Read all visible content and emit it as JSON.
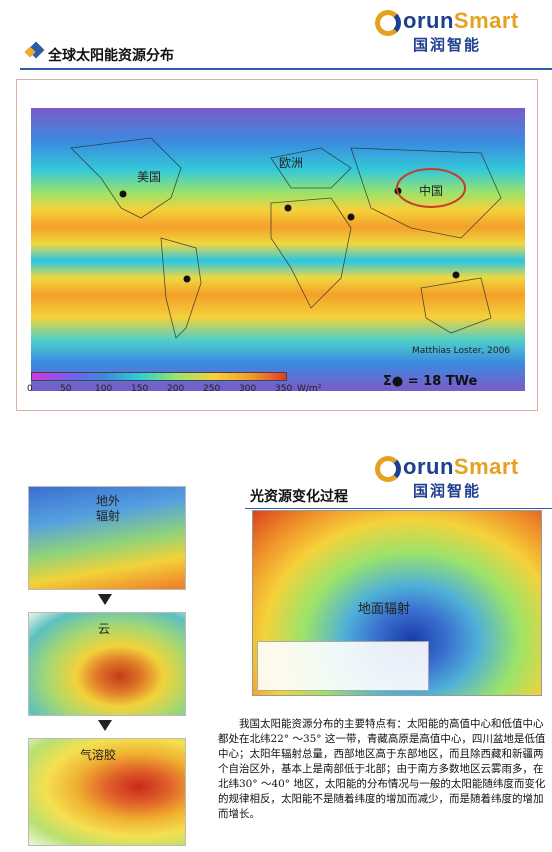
{
  "slide1": {
    "logo_word_o": "G",
    "logo_word_rest": "orun",
    "logo_word_smart": "Smart",
    "logo_cn": "国润智能",
    "title": "全球太阳能资源分布",
    "labels": {
      "usa": "美国",
      "europe": "欧洲",
      "china": "中国"
    },
    "credit": "Matthias Loster, 2006",
    "scale_ticks": [
      "0",
      "50",
      "100",
      "150",
      "200",
      "250",
      "300",
      "350"
    ],
    "scale_unit": "W/m²",
    "sum_label": "Σ● = 18 TWe"
  },
  "slide2": {
    "logo_word_o": "G",
    "logo_word_rest": "orun",
    "logo_word_smart": "Smart",
    "logo_cn": "国润智能",
    "title": "光资源变化过程",
    "panel_labels": {
      "top": "地外\n辐射",
      "mid": "云",
      "bottom": "气溶胶",
      "main": "地面辐射"
    },
    "paragraph": "我国太阳能资源分布的主要特点有：太阳能的高值中心和低值中心都处在北纬22° ～35° 这一带，青藏高原是高值中心，四川盆地是低值中心；太阳年辐射总量，西部地区高于东部地区，而且除西藏和新疆两个自治区外，基本上是南部低于北部；由于南方多数地区云雾雨多，在北纬30° ～40° 地区，太阳能的分布情况与一般的太阳能随纬度而变化的规律相反，太阳能不是随着纬度的增加而减少，而是随着纬度的增加而增长。"
  }
}
